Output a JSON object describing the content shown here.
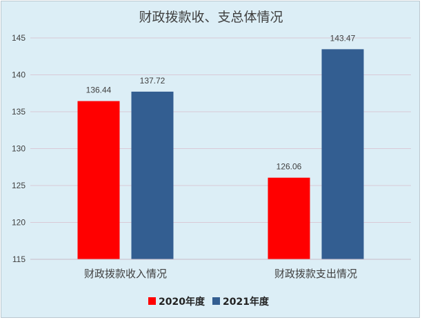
{
  "chart_data": {
    "type": "bar",
    "title": "财政拨款收、支总体情况",
    "categories": [
      "财政拨款收入情况",
      "财政拨款支出情况"
    ],
    "series": [
      {
        "name": "2020年度",
        "color": "#ff0000",
        "values": [
          136.44,
          126.06
        ],
        "labels": [
          "136.44",
          "126.06"
        ]
      },
      {
        "name": "2021年度",
        "color": "#335e91",
        "values": [
          137.72,
          143.47
        ],
        "labels": [
          "137.72",
          "143.47"
        ]
      }
    ],
    "ylim": [
      115,
      145
    ],
    "yticks": [
      115,
      120,
      125,
      130,
      135,
      140,
      145
    ],
    "grid": true,
    "legend": "bottom"
  }
}
